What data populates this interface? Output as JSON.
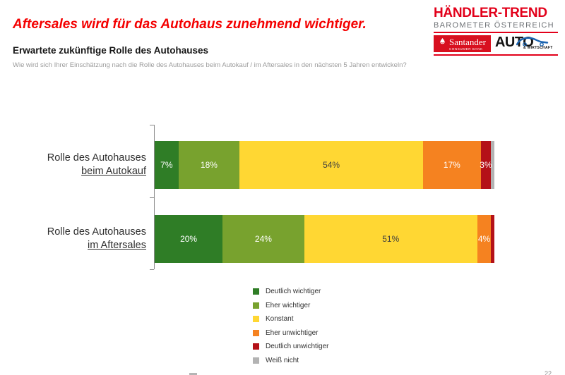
{
  "header": {
    "title": "Aftersales wird für das Autohaus zunehmend wichtiger.",
    "subtitle": "Erwartete zukünftige Rolle des Autohauses",
    "question": "Wie wird sich Ihrer Einschätzung nach die Rolle des Autohauses beim Autokauf / im Aftersales in den nächsten 5 Jahren entwickeln?"
  },
  "logo": {
    "line1": "HÄNDLER-TREND",
    "line2": "BAROMETER ÖSTERREICH",
    "sponsor1_name": "Santander",
    "sponsor1_sub": "CONSUMER BANK",
    "sponsor2_name": "AUTO",
    "sponsor2_sub": "& WIRTSCHAFT"
  },
  "accent_colors": {
    "title_red": "#f40000",
    "brand_red": "#e2001a",
    "santander_red": "#d8101f",
    "auto_car_blue": "#1b64b0"
  },
  "chart_data": {
    "type": "bar",
    "orientation": "horizontal_stacked",
    "unit": "%",
    "xlim": [
      0,
      100
    ],
    "grid": false,
    "legend_position": "bottom-center",
    "label_threshold": 3,
    "categories": [
      {
        "line1": "Rolle des Autohauses",
        "line2": "beim Autokauf"
      },
      {
        "line1": "Rolle des Autohauses",
        "line2": "im Aftersales"
      }
    ],
    "series": [
      {
        "name": "Deutlich wichtiger",
        "color": "#2f7d26",
        "label_color": "#ffffff",
        "values": [
          7,
          20
        ]
      },
      {
        "name": "Eher wichtiger",
        "color": "#78a22e",
        "label_color": "#ffffff",
        "values": [
          18,
          24
        ]
      },
      {
        "name": "Konstant",
        "color": "#ffd733",
        "label_color": "#3f3f3f",
        "values": [
          54,
          51
        ]
      },
      {
        "name": "Eher unwichtiger",
        "color": "#f58220",
        "label_color": "#ffffff",
        "values": [
          17,
          4
        ]
      },
      {
        "name": "Deutlich unwichtiger",
        "color": "#b41118",
        "label_color": "#ffffff",
        "values": [
          3,
          1
        ]
      },
      {
        "name": "Weiß nicht",
        "color": "#b3b3b3",
        "label_color": "#ffffff",
        "values": [
          1,
          0
        ]
      }
    ]
  },
  "footer": {
    "page_number": "22"
  }
}
